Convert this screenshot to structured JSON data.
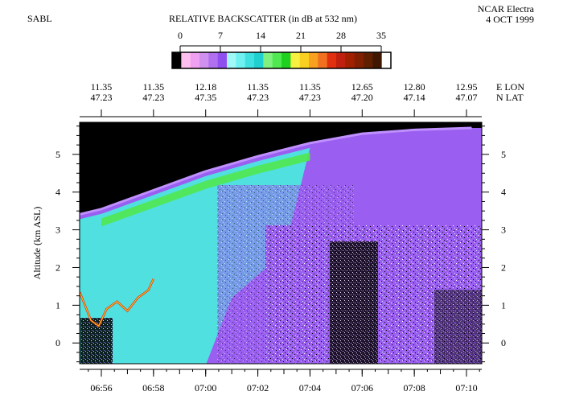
{
  "header": {
    "instrument": "SABL",
    "aircraft": "NCAR Electra",
    "date": "4 OCT 1999"
  },
  "colorbar": {
    "title": "RELATIVE BACKSCATTER (in dB at 532 nm)",
    "ticks": [
      "0",
      "7",
      "14",
      "21",
      "28",
      "35"
    ],
    "min": 0,
    "max": 35,
    "colors": [
      "#000000",
      "#ffc0f0",
      "#f0a0f0",
      "#d090f0",
      "#b070f0",
      "#9050f0",
      "#a0f8f8",
      "#70f0f0",
      "#40e0e0",
      "#20d0d0",
      "#80f080",
      "#50e850",
      "#20d020",
      "#f8f040",
      "#f8d020",
      "#f8a020",
      "#f07020",
      "#e03010",
      "#c02010",
      "#a02000",
      "#802000",
      "#602000",
      "#401800",
      "#ffffff"
    ]
  },
  "chart_data": {
    "type": "heatmap",
    "title": "RELATIVE BACKSCATTER (in dB at 532 nm)",
    "ylabel": "Altitude (km ASL)",
    "xlabel": "",
    "ylim": [
      -0.55,
      5.85
    ],
    "yticks": [
      0,
      1,
      2,
      3,
      4,
      5
    ],
    "xticks": [
      "06:56",
      "06:58",
      "07:00",
      "07:02",
      "07:04",
      "07:06",
      "07:08",
      "07:10"
    ],
    "position_labels": [
      {
        "lon": "11.35",
        "lat": "47.23"
      },
      {
        "lon": "11.35",
        "lat": "47.23"
      },
      {
        "lon": "12.18",
        "lat": "47.35"
      },
      {
        "lon": "11.35",
        "lat": "47.23"
      },
      {
        "lon": "11.35",
        "lat": "47.23"
      },
      {
        "lon": "12.65",
        "lat": "47.20"
      },
      {
        "lon": "12.80",
        "lat": "47.14"
      },
      {
        "lon": "12.95",
        "lat": "47.07"
      }
    ],
    "lon_label": "E LON",
    "lat_label": "N LAT",
    "aircraft_altitude_km": [
      {
        "time": "06:54.8",
        "alt": 3.35
      },
      {
        "time": "06:56",
        "alt": 3.55
      },
      {
        "time": "06:58",
        "alt": 4.05
      },
      {
        "time": "07:00",
        "alt": 4.55
      },
      {
        "time": "07:02",
        "alt": 4.95
      },
      {
        "time": "07:04",
        "alt": 5.3
      },
      {
        "time": "07:06",
        "alt": 5.55
      },
      {
        "time": "07:08",
        "alt": 5.65
      },
      {
        "time": "07:10.2",
        "alt": 5.7
      }
    ]
  }
}
